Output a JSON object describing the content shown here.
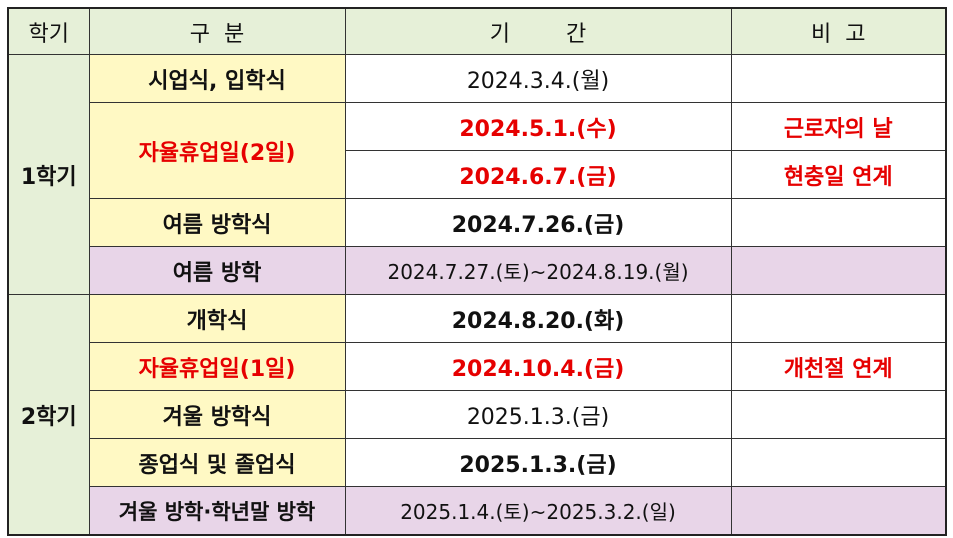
{
  "header": {
    "semester": "학기",
    "category": "구  분",
    "period": "기        간",
    "note": "비  고"
  },
  "semesters": {
    "first": "1학기",
    "second": "2학기"
  },
  "rows": [
    {
      "category": "시업식, 입학식",
      "period": "2024.3.4.(월)",
      "note": ""
    },
    {
      "category": "자율휴업일(2일)",
      "period": "2024.5.1.(수)",
      "note": "근로자의 날"
    },
    {
      "category": "",
      "period": "2024.6.7.(금)",
      "note": "현충일 연계"
    },
    {
      "category": "여름 방학식",
      "period": "2024.7.26.(금)",
      "note": ""
    },
    {
      "category": "여름 방학",
      "period": "2024.7.27.(토)~2024.8.19.(월)",
      "note": ""
    },
    {
      "category": "개학식",
      "period": "2024.8.20.(화)",
      "note": ""
    },
    {
      "category": "자율휴업일(1일)",
      "period": "2024.10.4.(금)",
      "note": "개천절 연계"
    },
    {
      "category": "겨울 방학식",
      "period": "2025.1.3.(금)",
      "note": ""
    },
    {
      "category": "종업식 및 졸업식",
      "period": "2025.1.3.(금)",
      "note": ""
    },
    {
      "category": "겨울 방학·학년말 방학",
      "period": "2025.1.4.(토)~2025.3.2.(일)",
      "note": ""
    }
  ],
  "colors": {
    "header_bg": "#e6f0d8",
    "category_bg": "#fff9c4",
    "vacation_bg": "#e8d5e8",
    "highlight_text": "#e60000"
  }
}
